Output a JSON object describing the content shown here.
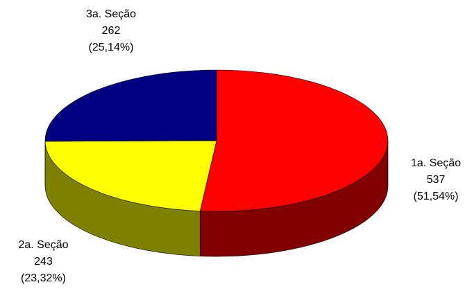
{
  "chart_data": {
    "type": "pie",
    "style": "3d",
    "title": "",
    "slices": [
      {
        "label": "1a. Seção",
        "value": 537,
        "percent": "(51,54%)",
        "top_color": "#ff0000",
        "side_color": "#800000"
      },
      {
        "label": "2a. Seção",
        "value": 243,
        "percent": "(23,32%)",
        "top_color": "#ffff00",
        "side_color": "#808000"
      },
      {
        "label": "3a. Seção",
        "value": 262,
        "percent": "(25,14%)",
        "top_color": "#000080",
        "side_color": "#000040"
      }
    ]
  }
}
